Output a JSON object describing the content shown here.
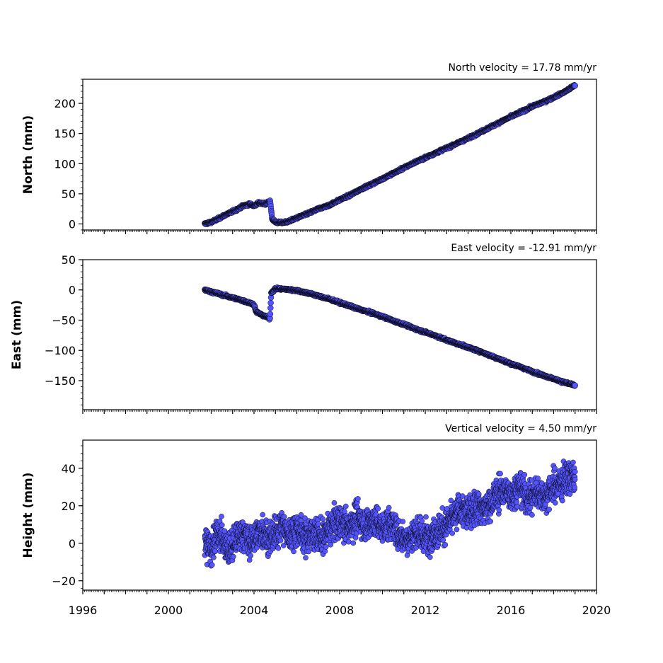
{
  "chart_data": [
    {
      "type": "scatter",
      "title": "North velocity = 17.78 mm/yr",
      "ylabel": "North (mm)",
      "xlim": [
        1996,
        2020
      ],
      "ylim": [
        -10,
        240
      ],
      "yticks": [
        0,
        50,
        100,
        150,
        200
      ],
      "marker_color": "#5555ff",
      "edge_color": "#000000",
      "series": [
        {
          "values": [
            [
              2001.7,
              0
            ],
            [
              2002.0,
              3
            ],
            [
              2002.3,
              8
            ],
            [
              2002.6,
              14
            ],
            [
              2002.9,
              19
            ],
            [
              2003.2,
              24
            ],
            [
              2003.5,
              30
            ],
            [
              2003.8,
              33
            ],
            [
              2004.0,
              30
            ],
            [
              2004.2,
              35
            ],
            [
              2004.5,
              33
            ],
            [
              2004.75,
              38
            ],
            [
              2004.85,
              8
            ],
            [
              2005.0,
              3
            ],
            [
              2005.3,
              2
            ],
            [
              2005.6,
              4
            ],
            [
              2006.0,
              10
            ],
            [
              2006.5,
              17
            ],
            [
              2007.0,
              25
            ],
            [
              2007.5,
              31
            ],
            [
              2008.0,
              40
            ],
            [
              2008.5,
              48
            ],
            [
              2009.0,
              58
            ],
            [
              2009.5,
              66
            ],
            [
              2010.0,
              75
            ],
            [
              2010.5,
              84
            ],
            [
              2011.0,
              93
            ],
            [
              2011.5,
              102
            ],
            [
              2012.0,
              110
            ],
            [
              2012.5,
              118
            ],
            [
              2013.0,
              126
            ],
            [
              2013.5,
              134
            ],
            [
              2014.0,
              142
            ],
            [
              2014.5,
              151
            ],
            [
              2015.0,
              160
            ],
            [
              2015.5,
              169
            ],
            [
              2016.0,
              178
            ],
            [
              2016.5,
              186
            ],
            [
              2017.0,
              195
            ],
            [
              2017.5,
              202
            ],
            [
              2018.0,
              210
            ],
            [
              2018.5,
              219
            ],
            [
              2019.0,
              230
            ]
          ]
        }
      ]
    },
    {
      "type": "scatter",
      "title": "East velocity = -12.91 mm/yr",
      "ylabel": "East (mm)",
      "xlim": [
        1996,
        2020
      ],
      "ylim": [
        -198,
        50
      ],
      "yticks": [
        50,
        0,
        -50,
        -100,
        -150
      ],
      "ytick_labels": [
        "50",
        "0",
        "−50",
        "−100",
        "−150"
      ],
      "marker_color": "#5555ff",
      "edge_color": "#000000",
      "series": [
        {
          "values": [
            [
              2001.7,
              0
            ],
            [
              2002.0,
              -3
            ],
            [
              2002.4,
              -7
            ],
            [
              2002.8,
              -11
            ],
            [
              2003.2,
              -15
            ],
            [
              2003.6,
              -19
            ],
            [
              2004.0,
              -24
            ],
            [
              2004.1,
              -36
            ],
            [
              2004.4,
              -42
            ],
            [
              2004.75,
              -47
            ],
            [
              2004.8,
              -5
            ],
            [
              2005.0,
              2
            ],
            [
              2005.5,
              1
            ],
            [
              2006.0,
              -1
            ],
            [
              2006.5,
              -5
            ],
            [
              2007.0,
              -10
            ],
            [
              2007.5,
              -15
            ],
            [
              2008.0,
              -21
            ],
            [
              2008.5,
              -27
            ],
            [
              2009.0,
              -33
            ],
            [
              2009.5,
              -38
            ],
            [
              2010.0,
              -44
            ],
            [
              2010.5,
              -51
            ],
            [
              2011.0,
              -57
            ],
            [
              2011.5,
              -64
            ],
            [
              2012.0,
              -70
            ],
            [
              2012.5,
              -76
            ],
            [
              2013.0,
              -83
            ],
            [
              2013.5,
              -89
            ],
            [
              2014.0,
              -95
            ],
            [
              2014.5,
              -101
            ],
            [
              2015.0,
              -108
            ],
            [
              2015.5,
              -115
            ],
            [
              2016.0,
              -122
            ],
            [
              2016.5,
              -128
            ],
            [
              2017.0,
              -135
            ],
            [
              2017.5,
              -141
            ],
            [
              2018.0,
              -147
            ],
            [
              2018.5,
              -153
            ],
            [
              2019.0,
              -158
            ]
          ]
        }
      ]
    },
    {
      "type": "scatter",
      "title": "Vertical velocity = 4.50 mm/yr",
      "ylabel": "Height (mm)",
      "xlim": [
        1996,
        2020
      ],
      "ylim": [
        -25,
        55
      ],
      "yticks": [
        -20,
        0,
        20,
        40
      ],
      "ytick_labels": [
        "−20",
        "0",
        "20",
        "40"
      ],
      "xticks": [
        1996,
        2000,
        2004,
        2008,
        2012,
        2016,
        2020
      ],
      "marker_color": "#5555ff",
      "edge_color": "#000000",
      "series": [
        {
          "values": [
            [
              2001.7,
              0
            ],
            [
              2002.0,
              -3
            ],
            [
              2002.3,
              5
            ],
            [
              2002.6,
              1
            ],
            [
              2002.9,
              -4
            ],
            [
              2003.2,
              3
            ],
            [
              2003.5,
              6
            ],
            [
              2003.8,
              0
            ],
            [
              2004.1,
              4
            ],
            [
              2004.4,
              7
            ],
            [
              2004.7,
              2
            ],
            [
              2005.0,
              5
            ],
            [
              2005.3,
              10
            ],
            [
              2005.6,
              4
            ],
            [
              2006.0,
              8
            ],
            [
              2006.4,
              3
            ],
            [
              2006.8,
              6
            ],
            [
              2007.2,
              2
            ],
            [
              2007.6,
              9
            ],
            [
              2008.0,
              12
            ],
            [
              2008.4,
              8
            ],
            [
              2008.8,
              14
            ],
            [
              2009.2,
              10
            ],
            [
              2009.6,
              12
            ],
            [
              2010.0,
              8
            ],
            [
              2010.4,
              11
            ],
            [
              2010.8,
              4
            ],
            [
              2011.2,
              2
            ],
            [
              2011.6,
              6
            ],
            [
              2012.0,
              3
            ],
            [
              2012.4,
              5
            ],
            [
              2012.8,
              8
            ],
            [
              2013.2,
              12
            ],
            [
              2013.6,
              18
            ],
            [
              2014.0,
              16
            ],
            [
              2014.4,
              20
            ],
            [
              2014.8,
              18
            ],
            [
              2015.2,
              24
            ],
            [
              2015.6,
              28
            ],
            [
              2016.0,
              26
            ],
            [
              2016.4,
              30
            ],
            [
              2016.8,
              24
            ],
            [
              2017.2,
              27
            ],
            [
              2017.6,
              25
            ],
            [
              2018.0,
              30
            ],
            [
              2018.4,
              33
            ],
            [
              2018.8,
              36
            ],
            [
              2019.0,
              34
            ]
          ]
        }
      ]
    }
  ]
}
